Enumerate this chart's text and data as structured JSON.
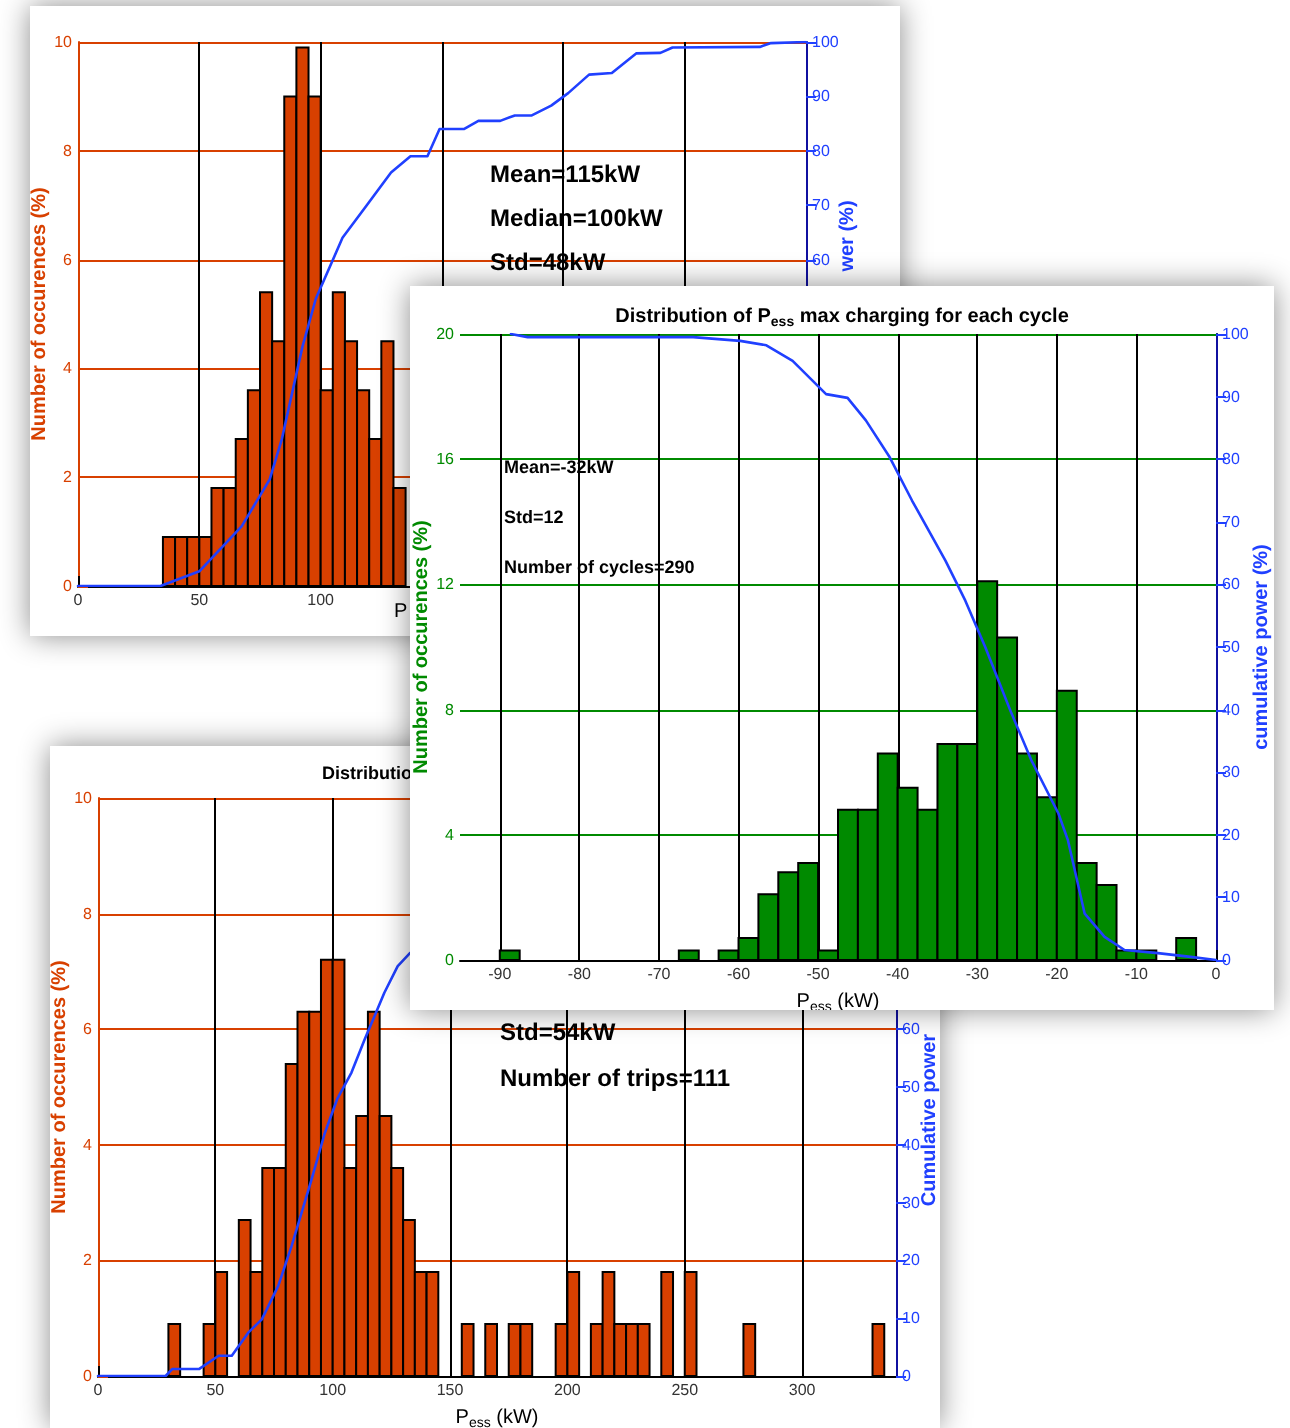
{
  "chart_data": [
    {
      "type": "histogram",
      "xlabel": "P",
      "ylabel": "Number of occurences (%)",
      "y2label": "wer (%)",
      "annotations": [
        "Mean=115kW",
        "Median=100kW",
        "Std=48kW"
      ],
      "xlim": [
        0,
        300
      ],
      "xticks": [
        0,
        50,
        100,
        {
          "value": 150,
          "label": null
        },
        {
          "value": 200,
          "label": null
        },
        {
          "value": 250,
          "label": null
        }
      ],
      "ylim": [
        0,
        10
      ],
      "yticks": [
        0,
        2,
        4,
        6,
        8,
        10
      ],
      "y2lim": [
        0,
        100
      ],
      "y2ticks": [
        {
          "value": 0,
          "label": null
        },
        {
          "value": 10,
          "label": null
        },
        {
          "value": 20,
          "label": null
        },
        {
          "value": 30,
          "label": null
        },
        {
          "value": 40,
          "label": null
        },
        {
          "value": 50,
          "label": null
        },
        60,
        70,
        80,
        90,
        100
      ],
      "grid": true,
      "series": [
        {
          "color": "#d84000",
          "bins": [
            35,
            40,
            45,
            50,
            55,
            60,
            65,
            70,
            75,
            80,
            85,
            90,
            95,
            100,
            105,
            110,
            115,
            120,
            125,
            130,
            135,
            140
          ],
          "values": [
            0.9,
            0.9,
            0.9,
            0.9,
            1.8,
            1.8,
            2.7,
            3.6,
            5.4,
            4.5,
            9.0,
            9.9,
            9.0,
            3.6,
            5.4,
            4.5,
            3.6,
            2.7,
            4.5,
            1.8,
            null
          ]
        },
        {
          "type": "line",
          "axis": "y2",
          "color": "#2040ff",
          "x": [
            0,
            34,
            50,
            67.5,
            79,
            84,
            92.5,
            98,
            109,
            119,
            129,
            137,
            144,
            149,
            159,
            165,
            174,
            180,
            187,
            195,
            202,
            210.6,
            220,
            230,
            240,
            245,
            281,
            285.6,
            300
          ],
          "values": [
            0,
            0,
            2.7,
            11,
            19.6,
            27,
            44,
            52.8,
            64,
            70,
            76,
            79,
            79,
            84,
            84,
            85.5,
            85.5,
            86.5,
            86.5,
            88.3,
            90.6,
            94,
            94.3,
            97.9,
            98,
            99,
            99.1,
            99.8,
            100
          ]
        }
      ]
    },
    {
      "type": "histogram",
      "title": "Distribution of P$_{ess}$ max charging for each cycle",
      "xlabel": "P$_{ess}$ (kW)",
      "ylabel": "Number of occurences (%)",
      "y2label": "cumulative power (%)",
      "annotations": [
        "Mean=-32kW",
        "Std=12",
        "Number of cycles=290"
      ],
      "xlim": [
        -95,
        0
      ],
      "xticks": [
        -90,
        -80,
        -70,
        -60,
        -50,
        -40,
        -30,
        -20,
        -10,
        0
      ],
      "ylim": [
        0,
        20
      ],
      "yticks": [
        0,
        4,
        8,
        12,
        16,
        20
      ],
      "y2lim": [
        0,
        100
      ],
      "y2ticks": [
        0,
        10,
        20,
        30,
        40,
        50,
        60,
        70,
        80,
        90,
        100
      ],
      "grid": true,
      "series": [
        {
          "color": "#008a00",
          "bins": [
            -90,
            -87.5,
            -85,
            -82.5,
            -80,
            -77.5,
            -75,
            -72.5,
            -70,
            -67.5,
            -65,
            -62.5,
            -60,
            -57.5,
            -55,
            -52.5,
            -50,
            -47.5,
            -45,
            -42.5,
            -40,
            -37.5,
            -35,
            -32.5,
            -30,
            -27.5,
            -25,
            -22.5,
            -20,
            -17.5,
            -15,
            -12.5,
            -10,
            -7.5,
            -5,
            -2.5,
            0
          ],
          "values": [
            0.3,
            0,
            0,
            0,
            0,
            0,
            0,
            0,
            0,
            0.3,
            0,
            0.3,
            0.7,
            2.1,
            2.8,
            3.1,
            0.3,
            4.8,
            4.8,
            6.6,
            5.5,
            4.8,
            6.9,
            6.9,
            12.1,
            10.3,
            6.6,
            5.2,
            8.6,
            3.1,
            2.4,
            0.3,
            0.3,
            0,
            0.7,
            0
          ]
        },
        {
          "type": "line",
          "axis": "y2",
          "color": "#2040ff",
          "x": [
            -88.6,
            -86.5,
            -65.7,
            -59.8,
            -56.5,
            -53.2,
            -49,
            -46.3,
            -44,
            -41,
            -38.2,
            -34,
            -31.5,
            -29,
            -25.7,
            -23.2,
            -19.8,
            -18.6,
            -16.5,
            -14,
            -11.5,
            -7.3,
            -3.2,
            0
          ],
          "values": [
            100,
            99.5,
            99.5,
            98.9,
            98.2,
            95.7,
            90.4,
            89.8,
            86.2,
            80.3,
            73.4,
            63.8,
            57.4,
            50,
            39.4,
            31.9,
            23.4,
            19.1,
            7.4,
            3.7,
            1.6,
            1.1,
            0.5,
            0
          ]
        }
      ]
    },
    {
      "type": "histogram",
      "title": "Distributio",
      "xlabel": "P$_{ess}$ (kW)",
      "ylabel": "Number of occurences (%)",
      "y2label": "Cumulative power",
      "annotations": [
        "Std=54kW",
        "Number of trips=111"
      ],
      "xlim": [
        0,
        340
      ],
      "xticks": [
        0,
        50,
        100,
        150,
        200,
        250,
        300
      ],
      "ylim": [
        0,
        10
      ],
      "yticks": [
        0,
        2,
        4,
        6,
        8,
        10
      ],
      "y2lim": [
        0,
        100
      ],
      "y2ticks": [
        0,
        10,
        20,
        30,
        40,
        50,
        60,
        {
          "value": 70,
          "label": null
        },
        {
          "value": 80,
          "label": null
        },
        {
          "value": 90,
          "label": null
        },
        {
          "value": 100,
          "label": null
        }
      ],
      "grid": true,
      "series": [
        {
          "color": "#d84000",
          "bins": [
            30,
            35,
            40,
            45,
            50,
            55,
            60,
            65,
            70,
            75,
            80,
            85,
            90,
            95,
            100,
            105,
            110,
            115,
            120,
            125,
            130,
            135,
            140,
            145,
            150,
            155,
            160,
            165,
            170,
            175,
            180,
            185,
            190,
            195,
            200,
            205,
            210,
            215,
            220,
            225,
            230,
            235,
            240,
            245,
            250,
            255,
            260,
            265,
            270,
            275,
            280,
            285,
            290,
            295,
            300,
            305,
            310,
            315,
            320,
            325,
            330,
            335
          ],
          "values": [
            0.9,
            0,
            0,
            0.9,
            1.8,
            0,
            2.7,
            1.8,
            3.6,
            3.6,
            5.4,
            6.3,
            6.3,
            7.2,
            7.2,
            3.6,
            4.5,
            6.3,
            4.5,
            3.6,
            2.7,
            1.8,
            1.8,
            0,
            null,
            0.9,
            0,
            0.9,
            0,
            0.9,
            0.9,
            0,
            0,
            0.9,
            1.8,
            0,
            0.9,
            1.8,
            0.9,
            0.9,
            0.9,
            0,
            1.8,
            0,
            1.8,
            0,
            0,
            0,
            0,
            0.9,
            0,
            0,
            0,
            0,
            0,
            0,
            0,
            0,
            0,
            0,
            0.9
          ]
        },
        {
          "type": "line",
          "axis": "y2",
          "color": "#2040ff",
          "x": [
            0,
            28.8,
            31.6,
            43,
            51.4,
            57,
            64,
            69.8,
            76.8,
            82.5,
            91,
            96.6,
            102,
            108,
            113.6,
            122,
            127.7,
            133
          ],
          "values": [
            0,
            0,
            1.2,
            1.2,
            3.5,
            3.5,
            7.5,
            9.8,
            15.6,
            22.5,
            34,
            42,
            48,
            52.5,
            58.2,
            66.3,
            70.9,
            73.2
          ]
        }
      ]
    }
  ]
}
